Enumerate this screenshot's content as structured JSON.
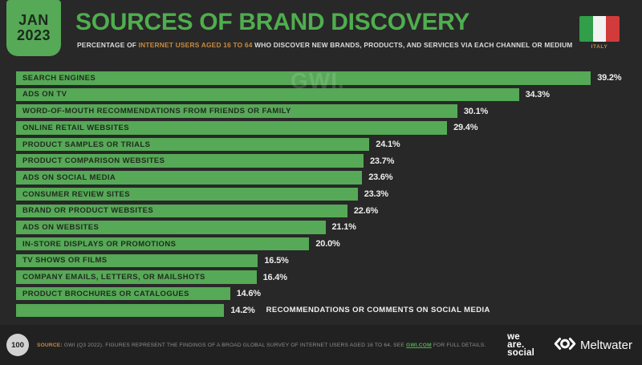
{
  "header": {
    "date_line1": "JAN",
    "date_line2": "2023",
    "title": "SOURCES OF BRAND DISCOVERY",
    "subtitle_pre": "PERCENTAGE OF ",
    "subtitle_highlight": "INTERNET USERS AGED 16 TO 64",
    "subtitle_post": " WHO DISCOVER NEW BRANDS, PRODUCTS, AND SERVICES VIA EACH CHANNEL OR MEDIUM",
    "country": "ITALY"
  },
  "watermark": "GWI.",
  "chart_data": {
    "type": "bar",
    "orientation": "horizontal",
    "title": "Sources of Brand Discovery",
    "xlabel": "Percentage of internet users aged 16 to 64",
    "unit": "%",
    "xlim": [
      0,
      41.6
    ],
    "grid": false,
    "bar_color": "#56a956",
    "categories": [
      "SEARCH ENGINES",
      "ADS ON TV",
      "WORD-OF-MOUTH RECOMMENDATIONS FROM FRIENDS OR FAMILY",
      "ONLINE RETAIL WEBSITES",
      "PRODUCT SAMPLES OR TRIALS",
      "PRODUCT COMPARISON WEBSITES",
      "ADS ON SOCIAL MEDIA",
      "CONSUMER REVIEW SITES",
      "BRAND OR PRODUCT WEBSITES",
      "ADS ON WEBSITES",
      "IN-STORE DISPLAYS OR PROMOTIONS",
      "TV SHOWS OR FILMS",
      "COMPANY EMAILS, LETTERS, OR MAILSHOTS",
      "PRODUCT BROCHURES OR CATALOGUES",
      "RECOMMENDATIONS OR COMMENTS ON SOCIAL MEDIA"
    ],
    "values": [
      39.2,
      34.3,
      30.1,
      29.4,
      24.1,
      23.7,
      23.6,
      23.3,
      22.6,
      21.1,
      20.0,
      16.5,
      16.4,
      14.6,
      14.2
    ],
    "value_labels": [
      "39.2%",
      "34.3%",
      "30.1%",
      "29.4%",
      "24.1%",
      "23.7%",
      "23.6%",
      "23.3%",
      "22.6%",
      "21.1%",
      "20.0%",
      "16.5%",
      "16.4%",
      "14.6%",
      "14.2%"
    ],
    "label_outside_index": 14
  },
  "footer": {
    "page_number": "100",
    "source_label": "SOURCE:",
    "source_text": " GWI (Q3 2022). FIGURES REPRESENT THE FINDINGS OF A BROAD GLOBAL SURVEY OF INTERNET USERS AGED 16 TO 64. SEE ",
    "source_link": "GWI.COM",
    "source_suffix": " FOR FULL DETAILS.",
    "we_are_social_lines": [
      "we",
      "are.",
      "social"
    ],
    "meltwater_label": "Meltwater"
  },
  "colors": {
    "background": "#282828",
    "footer_background": "#212121",
    "accent_green": "#56a956",
    "title_green": "#4fae4e",
    "highlight_orange": "#c98a3d",
    "bar_label_dark": "#212b20",
    "value_text": "#ededed",
    "flag_green": "#319e49",
    "flag_white": "#f2f2f2",
    "flag_red": "#d23b3b"
  }
}
